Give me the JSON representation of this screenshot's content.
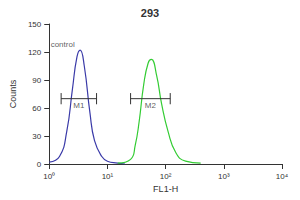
{
  "chart_data": {
    "type": "line",
    "title": "293",
    "x_label": "FL1-H",
    "y_label": "Counts",
    "log": "x",
    "xlim": [
      1,
      10000
    ],
    "xticks": [
      {
        "value": 1,
        "label": "10⁰"
      },
      {
        "value": 10,
        "label": "10¹"
      },
      {
        "value": 100,
        "label": "10²"
      },
      {
        "value": 1000,
        "label": "10³"
      },
      {
        "value": 10000,
        "label": "10⁴"
      }
    ],
    "ylim": [
      0,
      150
    ],
    "yticks": [
      0,
      30,
      60,
      90,
      120,
      150
    ],
    "grid": false,
    "series": [
      {
        "name": "control",
        "color": "#3a3aa8",
        "x": [
          1,
          1.5,
          2,
          2.5,
          3,
          3.4,
          4,
          5,
          6,
          8,
          10,
          15,
          20
        ],
        "values": [
          2,
          8,
          35,
          80,
          115,
          122,
          105,
          55,
          25,
          8,
          3,
          1,
          0
        ]
      },
      {
        "name": "293",
        "color": "#33cc33",
        "x": [
          15,
          25,
          30,
          35,
          42,
          50,
          57,
          70,
          85,
          110,
          150,
          220,
          400
        ],
        "values": [
          1,
          5,
          20,
          45,
          85,
          108,
          112,
          95,
          65,
          35,
          12,
          3,
          1
        ]
      }
    ],
    "annotations": [
      {
        "text": "control",
        "x": 1.7,
        "y": 128
      }
    ],
    "markers": [
      {
        "label": "M1",
        "range": [
          1.6,
          6.5
        ],
        "y": 70
      },
      {
        "label": "M2",
        "range": [
          25,
          120
        ],
        "y": 70
      }
    ]
  }
}
